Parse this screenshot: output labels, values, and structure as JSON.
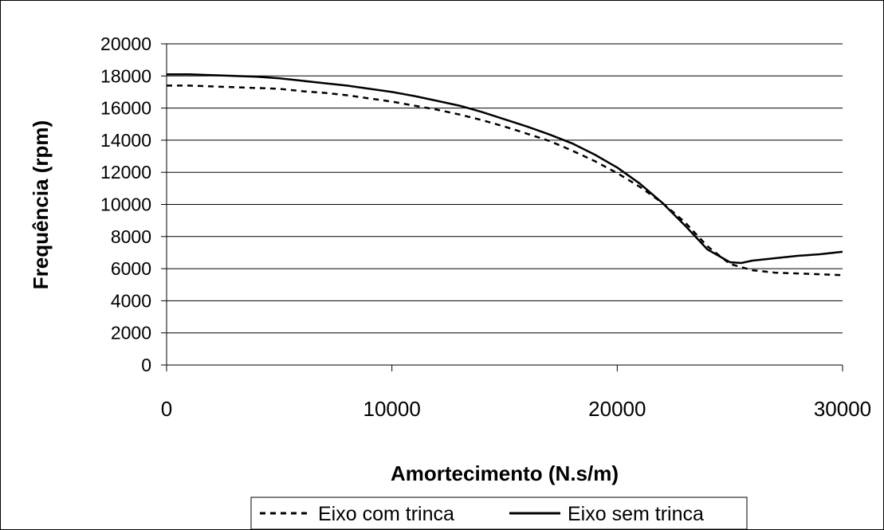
{
  "chart_data": {
    "type": "line",
    "title": "",
    "xlabel": "Amortecimento (N.s/m)",
    "ylabel": "Frequência (rpm)",
    "xlim": [
      0,
      30000
    ],
    "ylim": [
      0,
      20000
    ],
    "x_ticks": [
      "0",
      "10000",
      "20000",
      "30000"
    ],
    "y_ticks": [
      "0",
      "2000",
      "4000",
      "6000",
      "8000",
      "10000",
      "12000",
      "14000",
      "16000",
      "18000",
      "20000"
    ],
    "grid": "horizontal",
    "legend_position": "bottom",
    "series": [
      {
        "name": "Eixo com trinca",
        "style": "dashed",
        "color": "#000000",
        "x": [
          0,
          1000,
          2000,
          3000,
          4000,
          5000,
          6000,
          7000,
          8000,
          9000,
          10000,
          11000,
          12000,
          13000,
          14000,
          15000,
          16000,
          17000,
          18000,
          19000,
          20000,
          21000,
          22000,
          23000,
          24000,
          25000,
          26000,
          27000,
          28000,
          29000,
          30000
        ],
        "values": [
          17400,
          17400,
          17350,
          17300,
          17250,
          17200,
          17050,
          16950,
          16800,
          16600,
          16400,
          16150,
          15900,
          15600,
          15250,
          14850,
          14400,
          13950,
          13350,
          12700,
          11950,
          11100,
          10100,
          8900,
          7400,
          6300,
          5900,
          5750,
          5700,
          5650,
          5600
        ]
      },
      {
        "name": "Eixo sem trinca",
        "style": "solid",
        "color": "#000000",
        "x": [
          0,
          1000,
          2000,
          3000,
          4000,
          5000,
          6000,
          7000,
          8000,
          9000,
          10000,
          11000,
          12000,
          13000,
          14000,
          15000,
          16000,
          17000,
          18000,
          19000,
          20000,
          21000,
          22000,
          23000,
          24000,
          25000,
          25500,
          26000,
          27000,
          28000,
          29000,
          30000
        ],
        "values": [
          18100,
          18100,
          18050,
          18000,
          17950,
          17850,
          17700,
          17550,
          17400,
          17200,
          17000,
          16750,
          16450,
          16150,
          15750,
          15300,
          14850,
          14350,
          13800,
          13100,
          12300,
          11300,
          10100,
          8700,
          7200,
          6400,
          6350,
          6500,
          6650,
          6800,
          6900,
          7050
        ]
      }
    ]
  }
}
